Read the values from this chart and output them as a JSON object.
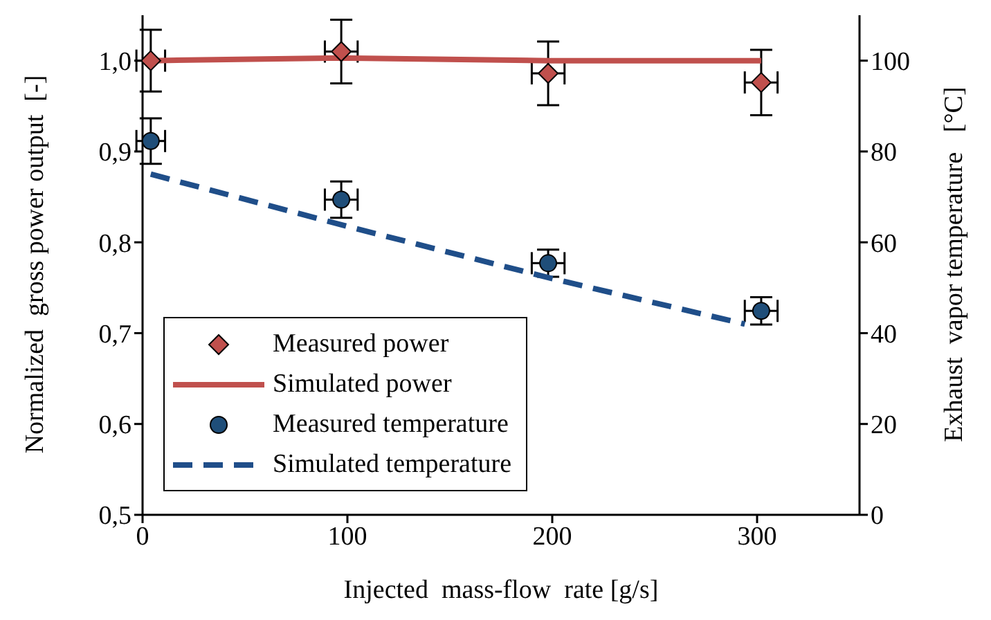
{
  "chart_data": {
    "type": "scatter",
    "xlabel": "Injected  mass-flow  rate [g/s]",
    "ylabel": "Normalized  gross power output  [-]",
    "y2label": "Exhaust  vapor temperature   [°C]",
    "xlim": [
      0,
      350
    ],
    "xticks": [
      0,
      100,
      200,
      300
    ],
    "ylim": [
      0.5,
      1.05
    ],
    "yticks": [
      {
        "value": 0.5,
        "label": "0,5"
      },
      {
        "value": 0.6,
        "label": "0,6"
      },
      {
        "value": 0.7,
        "label": "0,7"
      },
      {
        "value": 0.8,
        "label": "0,8"
      },
      {
        "value": 0.9,
        "label": "0,9"
      },
      {
        "value": 1.0,
        "label": "1,0"
      }
    ],
    "y2lim": [
      0,
      110
    ],
    "y2ticks": [
      0,
      20,
      40,
      60,
      80,
      100
    ],
    "legend": "bottom left",
    "series": [
      {
        "name": "Measured power",
        "marker": "diamond",
        "color": "#c0504d",
        "x": [
          4,
          97,
          198,
          302
        ],
        "values": [
          1.0,
          1.01,
          0.986,
          0.976
        ],
        "errors": [
          0.034,
          0.035,
          0.035,
          0.036
        ],
        "xerrors": [
          7,
          8,
          8,
          8
        ]
      },
      {
        "name": "Simulated power",
        "type": "line",
        "marker": "none",
        "line_style": "solid",
        "color": "#c0504d",
        "x": [
          4,
          97,
          198,
          302
        ],
        "values": [
          1.0,
          1.003,
          1.0,
          1.0
        ]
      },
      {
        "name": "Measured temperature",
        "marker": "circle",
        "color": "#1f4e79",
        "axis": "y2",
        "x": [
          4,
          97,
          198,
          302
        ],
        "values": [
          82.3,
          69.4,
          55.4,
          44.9
        ],
        "errors": [
          5,
          4,
          3,
          3
        ],
        "xerrors": [
          7,
          8,
          8,
          8
        ]
      },
      {
        "name": "Simulated temperature",
        "type": "line",
        "marker": "none",
        "line_style": "dashed",
        "color": "#1f4e89",
        "axis": "y2",
        "x": [
          4,
          100,
          200,
          294
        ],
        "values": [
          75,
          63.5,
          52,
          42
        ]
      }
    ]
  }
}
